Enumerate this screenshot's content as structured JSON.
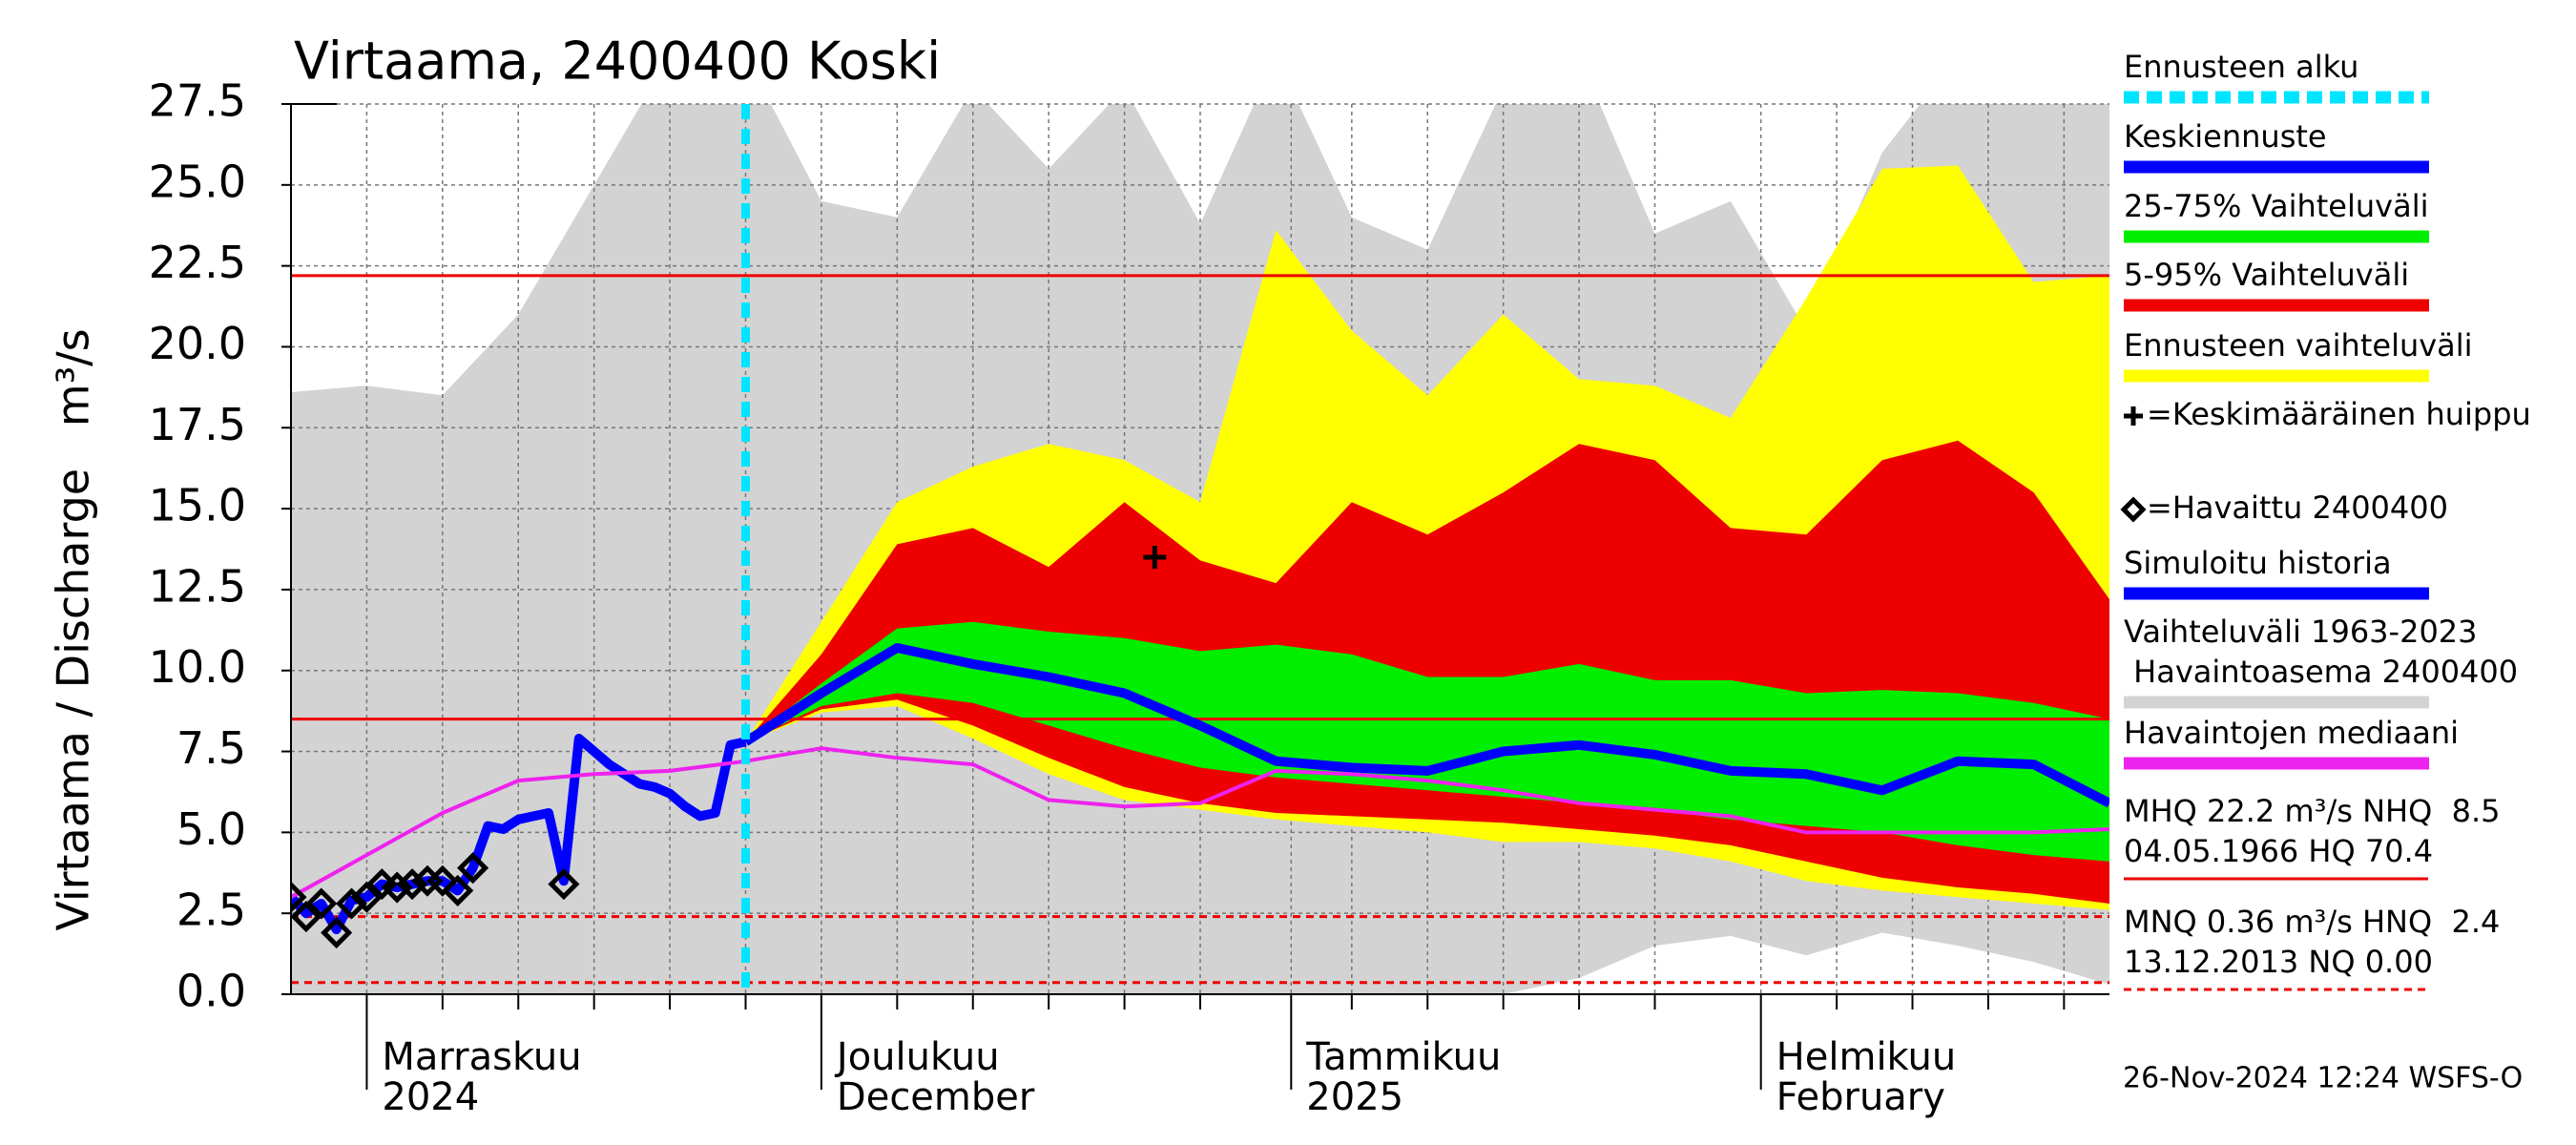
{
  "chart_data": {
    "type": "line",
    "title": "Virtaama, 2400400 Koski",
    "ylabel": "Virtaama / Discharge   m³/s",
    "footer": "26-Nov-2024 12:24 WSFS-O",
    "xlim": [
      -5,
      115
    ],
    "xticks": [
      {
        "value": 0,
        "label": "Marraskuu"
      },
      {
        "value": 30,
        "label": "Joulukuu"
      },
      {
        "value": 61,
        "label": "Tammikuu"
      },
      {
        "value": 92,
        "label": "Helmikuu"
      }
    ],
    "xticklabels2": [
      "2024",
      "December",
      "2025",
      "February"
    ],
    "xminorticks": [
      5,
      10,
      15,
      20,
      25,
      35,
      40,
      45,
      50,
      55,
      65,
      70,
      75,
      80,
      85,
      97,
      102,
      107,
      112
    ],
    "ylim": [
      0,
      27.5
    ],
    "yticks": [
      {
        "value": 0,
        "label": "0.0"
      },
      2.5,
      {
        "value": 5,
        "label": "5.0"
      },
      7.5,
      {
        "value": 10,
        "label": "10.0"
      },
      12.5,
      {
        "value": 15,
        "label": "15.0"
      },
      17.5,
      {
        "value": 20,
        "label": "20.0"
      },
      22.5,
      {
        "value": 25,
        "label": "25.0"
      },
      27.5
    ],
    "grid": true,
    "legend": "right",
    "series": [
      {
        "name": "Ennusteen alku",
        "kind": "vline",
        "color": "#00e5ff",
        "x": 25
      },
      {
        "name": "Keskiennuste",
        "kind": "line",
        "color": "#0000ff",
        "x": [
          25,
          30,
          35,
          40,
          45,
          50,
          55,
          60,
          65,
          70,
          75,
          80,
          85,
          90,
          95,
          100,
          105,
          110,
          115
        ],
        "values": [
          7.8,
          9.3,
          10.7,
          10.2,
          9.8,
          9.3,
          8.3,
          7.2,
          7.0,
          6.9,
          7.5,
          7.7,
          7.4,
          6.9,
          6.8,
          6.3,
          7.2,
          7.1,
          5.9
        ]
      },
      {
        "name": "25-75% Vaihteluväli",
        "kind": "band",
        "color": "#00ee00",
        "x": [
          25,
          30,
          35,
          40,
          45,
          50,
          55,
          60,
          65,
          70,
          75,
          80,
          85,
          90,
          95,
          100,
          105,
          110,
          115
        ],
        "lower": [
          7.8,
          8.9,
          9.3,
          9.0,
          8.3,
          7.6,
          7.0,
          6.7,
          6.5,
          6.3,
          6.1,
          5.9,
          5.7,
          5.4,
          5.2,
          5.0,
          4.6,
          4.3,
          4.1
        ],
        "upper": [
          7.8,
          9.6,
          11.3,
          11.5,
          11.2,
          11.0,
          10.6,
          10.8,
          10.5,
          9.8,
          9.8,
          10.2,
          9.7,
          9.7,
          9.3,
          9.4,
          9.3,
          9.0,
          8.5
        ]
      },
      {
        "name": "5-95% Vaihteluväli",
        "kind": "band",
        "color": "#ee0000",
        "x": [
          25,
          30,
          35,
          40,
          45,
          50,
          55,
          60,
          65,
          70,
          75,
          80,
          85,
          90,
          95,
          100,
          105,
          110,
          115
        ],
        "lower": [
          7.8,
          8.8,
          9.1,
          8.3,
          7.3,
          6.4,
          5.9,
          5.6,
          5.5,
          5.4,
          5.3,
          5.1,
          4.9,
          4.6,
          4.1,
          3.6,
          3.3,
          3.1,
          2.8
        ],
        "upper": [
          7.8,
          10.5,
          13.9,
          14.4,
          13.2,
          15.2,
          13.4,
          12.7,
          15.2,
          14.2,
          15.5,
          17.0,
          16.5,
          14.4,
          14.2,
          16.5,
          17.1,
          15.5,
          12.2
        ]
      },
      {
        "name": "Ennusteen vaihteluväli",
        "kind": "band",
        "color": "#ffff00",
        "x": [
          25,
          30,
          35,
          40,
          45,
          50,
          55,
          60,
          65,
          70,
          75,
          80,
          85,
          90,
          95,
          100,
          105,
          110,
          115
        ],
        "lower": [
          7.8,
          8.7,
          8.9,
          7.9,
          6.8,
          6.0,
          5.7,
          5.4,
          5.2,
          5.0,
          4.7,
          4.7,
          4.5,
          4.1,
          3.5,
          3.2,
          3.0,
          2.8,
          2.6
        ],
        "upper": [
          7.8,
          11.5,
          15.2,
          16.3,
          17.0,
          16.5,
          15.2,
          23.6,
          20.5,
          18.5,
          21.0,
          19.0,
          18.8,
          17.8,
          21.5,
          25.5,
          25.6,
          22.0,
          22.2
        ]
      },
      {
        "name": "=Keskimääräinen huippu",
        "kind": "plus",
        "color": "#000000",
        "x": [
          52
        ],
        "values": [
          13.5
        ]
      },
      {
        "name": "=Havaittu 2400400",
        "kind": "diamond",
        "color": "#000000",
        "x": [
          -5,
          -4,
          -3,
          -2,
          -1,
          0,
          1,
          2,
          3,
          4,
          5,
          6,
          7,
          13
        ],
        "values": [
          3.0,
          2.4,
          2.8,
          1.9,
          2.8,
          3.0,
          3.4,
          3.3,
          3.4,
          3.5,
          3.5,
          3.2,
          3.9,
          3.4
        ]
      },
      {
        "name": "Simuloitu historia",
        "kind": "line",
        "color": "#0000ff",
        "x": [
          -5,
          -4,
          -3,
          -2,
          -1,
          0,
          1,
          2,
          3,
          4,
          5,
          6,
          7,
          8,
          9,
          10,
          11,
          12,
          13,
          14,
          15,
          16,
          17,
          18,
          19,
          20,
          21,
          22,
          23,
          24,
          25
        ],
        "values": [
          3.0,
          2.5,
          2.8,
          2.0,
          2.9,
          3.0,
          3.4,
          3.3,
          3.4,
          3.5,
          3.5,
          3.2,
          3.9,
          5.2,
          5.1,
          5.4,
          5.5,
          5.6,
          3.5,
          7.9,
          7.5,
          7.1,
          6.8,
          6.5,
          6.4,
          6.2,
          5.8,
          5.5,
          5.6,
          7.7,
          7.8
        ]
      },
      {
        "name": [
          "Vaihteluväli 1963-2023",
          " Havaintoasema 2400400"
        ],
        "kind": "band",
        "color": "#d3d3d3",
        "x": [
          -5,
          0,
          5,
          10,
          15,
          20,
          25,
          30,
          35,
          40,
          45,
          50,
          55,
          60,
          65,
          70,
          75,
          80,
          85,
          90,
          95,
          100,
          105,
          110,
          115
        ],
        "lower": [
          0,
          0,
          0,
          0,
          0,
          0,
          0,
          0,
          0,
          0,
          0,
          0,
          0,
          0,
          0,
          0,
          0,
          0.5,
          1.5,
          1.8,
          1.2,
          1.9,
          1.5,
          1.0,
          0.3
        ],
        "upper": [
          18.6,
          18.8,
          18.5,
          21.0,
          25.0,
          29.0,
          29.0,
          24.5,
          24.0,
          28.0,
          25.5,
          28.0,
          23.8,
          29.0,
          24.0,
          23.0,
          28.0,
          29.0,
          23.5,
          24.5,
          20.5,
          26.0,
          29.0,
          29.0,
          29.0
        ]
      },
      {
        "name": "Havaintojen mediaani",
        "kind": "line",
        "color": "#ee22ee",
        "x": [
          -5,
          0,
          5,
          10,
          15,
          20,
          25,
          30,
          35,
          40,
          45,
          50,
          55,
          60,
          65,
          70,
          75,
          80,
          85,
          90,
          95,
          100,
          105,
          110,
          115
        ],
        "values": [
          3.0,
          4.3,
          5.6,
          6.6,
          6.8,
          6.9,
          7.2,
          7.6,
          7.3,
          7.1,
          6.0,
          5.8,
          5.9,
          6.9,
          6.8,
          6.6,
          6.3,
          5.9,
          5.7,
          5.5,
          5.0,
          5.0,
          5.0,
          5.0,
          5.1
        ]
      }
    ],
    "ref_lines": [
      {
        "value": 22.2,
        "color": "#ee0000",
        "dashed": false
      },
      {
        "value": 8.5,
        "color": "#ee0000",
        "dashed": false
      },
      {
        "value": 2.4,
        "color": "#ee0000",
        "dashed": true
      },
      {
        "value": 0.36,
        "color": "#ee0000",
        "dashed": true
      }
    ],
    "ref_labels": [
      "MHQ 22.2 m³/s NHQ  8.5",
      "04.05.1966 HQ 70.4",
      "MNQ 0.36 m³/s HNQ  2.4",
      "13.12.2013 NQ 0.00"
    ]
  }
}
